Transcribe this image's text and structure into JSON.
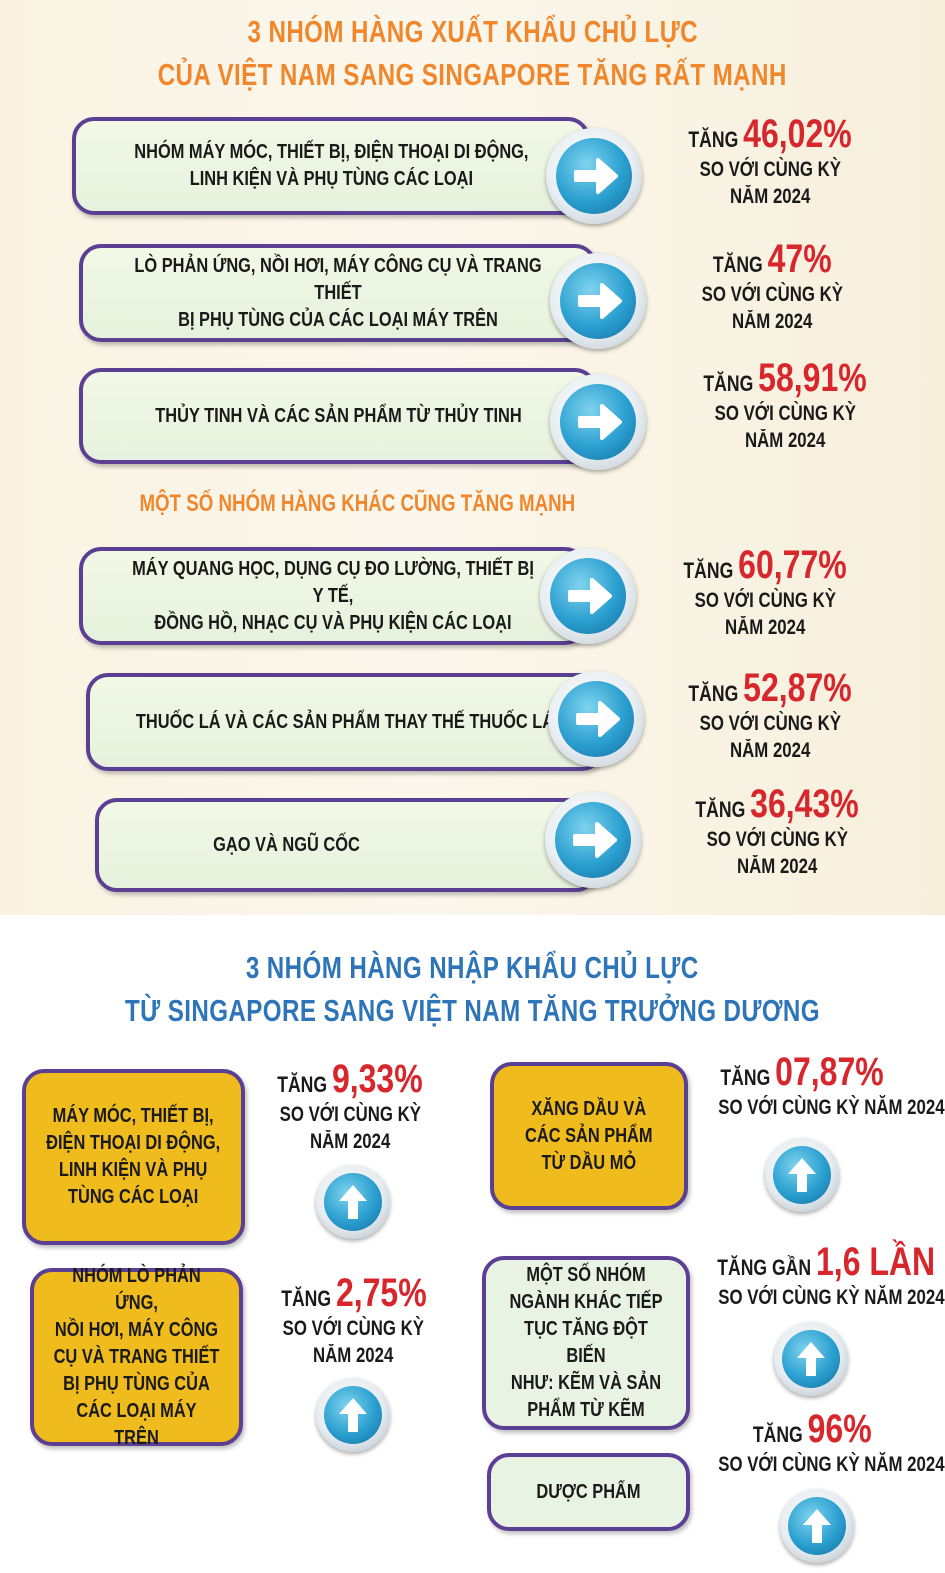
{
  "export_section": {
    "title_line1": "3 NHÓM HÀNG XUẤT KHẨU CHỦ LỰC",
    "title_line2": "CỦA VIỆT NAM SANG SINGAPORE TĂNG RẤT MẠNH",
    "subtitle": "MỘT SỐ NHÓM HÀNG KHÁC CŨNG TĂNG MẠNH",
    "items": [
      {
        "label_l1": "NHÓM MÁY MÓC, THIẾT BỊ, ĐIỆN THOẠI DI ĐỘNG,",
        "label_l2": "LINH KIỆN VÀ PHỤ TÙNG CÁC LOẠI",
        "prefix": "TĂNG",
        "value": "46,02%",
        "note_l1": "SO VỚI CÙNG KỲ",
        "note_l2": "NĂM 2024"
      },
      {
        "label_l1": "LÒ PHẢN ỨNG, NỒI HƠI, MÁY CÔNG CỤ VÀ TRANG THIẾT",
        "label_l2": "BỊ PHỤ TÙNG CỦA CÁC LOẠI MÁY TRÊN",
        "prefix": "TĂNG",
        "value": "47%",
        "note_l1": "SO VỚI CÙNG KỲ",
        "note_l2": "NĂM 2024"
      },
      {
        "label_l1": "THỦY TINH VÀ CÁC SẢN PHẨM TỪ THỦY TINH",
        "label_l2": "",
        "prefix": "TĂNG",
        "value": "58,91%",
        "note_l1": "SO VỚI CÙNG KỲ",
        "note_l2": "NĂM 2024"
      },
      {
        "label_l1": "MÁY QUANG HỌC, DỤNG CỤ ĐO LƯỜNG, THIẾT BỊ Y TẾ,",
        "label_l2": "ĐỒNG HỒ, NHẠC CỤ VÀ PHỤ KIỆN CÁC LOẠI",
        "prefix": "TĂNG",
        "value": "60,77%",
        "note_l1": "SO VỚI CÙNG KỲ",
        "note_l2": "NĂM 2024"
      },
      {
        "label_l1": "THUỐC LÁ VÀ CÁC SẢN PHẨM THAY THẾ THUỐC LÁ",
        "label_l2": "",
        "prefix": "TĂNG",
        "value": "52,87%",
        "note_l1": "SO VỚI CÙNG KỲ",
        "note_l2": "NĂM 2024"
      },
      {
        "label_l1": "GẠO VÀ NGŨ CỐC",
        "label_l2": "",
        "prefix": "TĂNG",
        "value": "36,43%",
        "note_l1": "SO VỚI CÙNG KỲ",
        "note_l2": "NĂM 2024"
      }
    ]
  },
  "import_section": {
    "title_line1": "3 NHÓM HÀNG NHẬP KHẨU CHỦ LỰC",
    "title_line2": "TỪ SINGAPORE SANG VIỆT NAM TĂNG TRƯỞNG DƯƠNG",
    "items": [
      {
        "label": [
          "MÁY MÓC, THIẾT BỊ,",
          "ĐIỆN THOẠI DI ĐỘNG,",
          "LINH KIỆN VÀ PHỤ",
          "TÙNG CÁC LOẠI"
        ],
        "prefix": "TĂNG",
        "value": "9,33%",
        "note_l1": "SO VỚI CÙNG KỲ",
        "note_l2": "NĂM 2024"
      },
      {
        "label": [
          "NHÓM LÒ PHẢN ỨNG,",
          "NỒI HƠI, MÁY CÔNG",
          "CỤ VÀ TRANG THIẾT",
          "BỊ PHỤ TÙNG CỦA",
          "CÁC LOẠI MÁY TRÊN"
        ],
        "prefix": "TĂNG",
        "value": "2,75%",
        "note_l1": "SO VỚI CÙNG KỲ",
        "note_l2": "NĂM 2024"
      },
      {
        "label": [
          "XĂNG DẦU VÀ",
          "CÁC SẢN PHẨM",
          "TỪ DẦU MỎ"
        ],
        "prefix": "TĂNG",
        "value": "07,87%",
        "note_l1": "SO VỚI CÙNG KỲ NĂM 2024"
      },
      {
        "label": [
          "MỘT SỐ NHÓM",
          "NGÀNH KHÁC TIẾP",
          "TỤC TĂNG ĐỘT BIẾN",
          "NHƯ: KẼM VÀ SẢN",
          "PHẨM TỪ KẼM"
        ],
        "prefix": "TĂNG GẦN",
        "value": "1,6 LẦN",
        "note_l1": "SO VỚI CÙNG KỲ NĂM 2024"
      },
      {
        "label": [
          "DƯỢC PHẨM"
        ],
        "prefix": "TĂNG",
        "value": "96%",
        "note_l1": "SO VỚI CÙNG KỲ NĂM 2024"
      }
    ]
  },
  "colors": {
    "title_export": "#f0872c",
    "title_import": "#2d75b8",
    "value_red": "#d8262d",
    "box_border": "#5b3f93",
    "yellow_box": "#f0bb1c"
  }
}
